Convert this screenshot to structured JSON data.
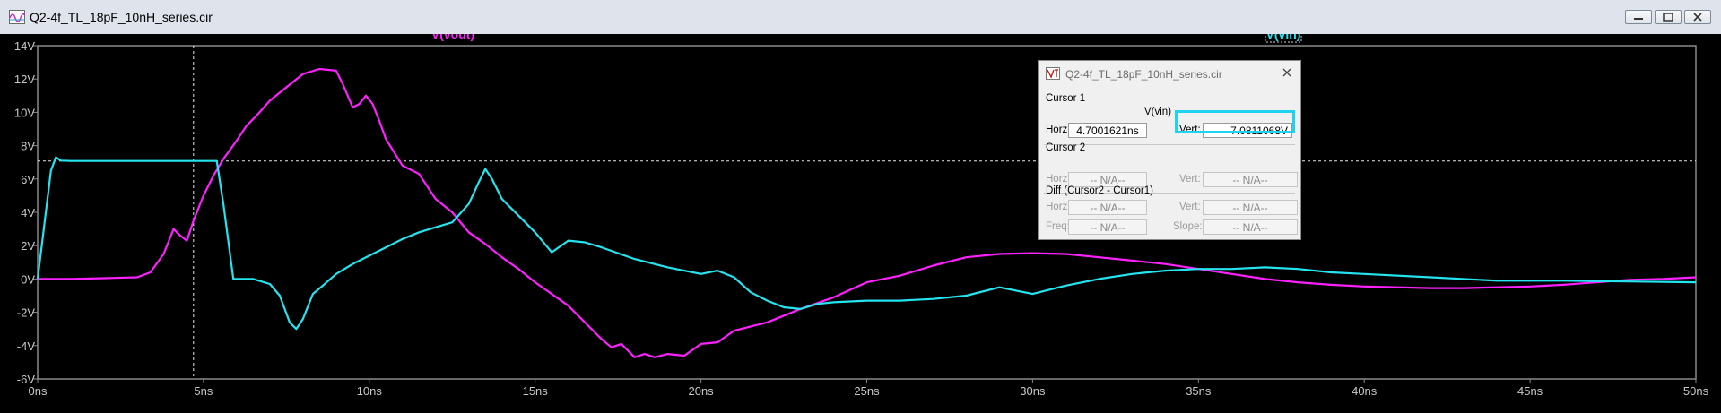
{
  "window": {
    "title": "Q2-4f_TL_18pF_10nH_series.cir"
  },
  "plot": {
    "traces": [
      {
        "name": "V(vout)",
        "color": "#ff20ff"
      },
      {
        "name": "V(vin)",
        "color": "#24e4f0"
      }
    ],
    "y_ticks": [
      "14V",
      "12V",
      "10V",
      "8V",
      "6V",
      "4V",
      "2V",
      "0V",
      "-2V",
      "-4V",
      "-6V"
    ],
    "x_ticks": [
      "0ns",
      "5ns",
      "10ns",
      "15ns",
      "20ns",
      "25ns",
      "30ns",
      "35ns",
      "40ns",
      "45ns",
      "50ns"
    ]
  },
  "chart_data": {
    "type": "line",
    "xlabel": "",
    "ylabel": "",
    "xlim": [
      0,
      50
    ],
    "ylim": [
      -6,
      14
    ],
    "x_unit": "ns",
    "y_unit": "V",
    "grid": false,
    "cursor": {
      "x": 4.7001621,
      "y": 7.0811068
    },
    "series": [
      {
        "name": "V(vout)",
        "color": "#ff20ff",
        "x": [
          0,
          1,
          2,
          3,
          3.4,
          3.8,
          4.1,
          4.3,
          4.5,
          4.7,
          5,
          5.3,
          5.6,
          6,
          6.3,
          6.6,
          7,
          7.5,
          8,
          8.5,
          9,
          9.2,
          9.5,
          9.7,
          9.9,
          10.1,
          10.3,
          10.5,
          11,
          11.5,
          12,
          12.5,
          13,
          13.5,
          14,
          14.5,
          15,
          16,
          17,
          17.3,
          17.6,
          18,
          18.3,
          18.6,
          19,
          19.5,
          20,
          20.5,
          21,
          22,
          23,
          24,
          25,
          26,
          27,
          28,
          29,
          30,
          31,
          32,
          33,
          34,
          35,
          36,
          37,
          38,
          39,
          40,
          41,
          42,
          43,
          44,
          45,
          46,
          47,
          48,
          49,
          50
        ],
        "values": [
          0,
          0,
          0.05,
          0.1,
          0.4,
          1.5,
          3.0,
          2.6,
          2.3,
          3.5,
          5.0,
          6.2,
          7.2,
          8.3,
          9.2,
          9.8,
          10.7,
          11.5,
          12.3,
          12.6,
          12.5,
          11.7,
          10.3,
          10.5,
          11.0,
          10.5,
          9.5,
          8.4,
          6.8,
          6.3,
          4.8,
          4.0,
          2.8,
          2.1,
          1.3,
          0.6,
          -0.2,
          -1.6,
          -3.6,
          -4.1,
          -3.9,
          -4.7,
          -4.5,
          -4.7,
          -4.5,
          -4.6,
          -3.9,
          -3.8,
          -3.1,
          -2.6,
          -1.8,
          -1.1,
          -0.2,
          0.2,
          0.8,
          1.3,
          1.5,
          1.55,
          1.5,
          1.3,
          1.1,
          0.9,
          0.6,
          0.3,
          0,
          -0.2,
          -0.35,
          -0.45,
          -0.5,
          -0.55,
          -0.55,
          -0.5,
          -0.45,
          -0.35,
          -0.2,
          -0.05,
          0,
          0.1
        ]
      },
      {
        "name": "V(vin)",
        "color": "#24e4f0",
        "x": [
          0,
          0.4,
          0.55,
          0.7,
          1,
          2,
          3,
          4,
          4.7,
          5.4,
          5.6,
          5.8,
          5.9,
          6,
          6.5,
          7,
          7.3,
          7.6,
          7.8,
          8,
          8.3,
          8.6,
          9,
          9.5,
          10,
          10.5,
          11,
          11.5,
          12,
          12.5,
          13,
          13.3,
          13.5,
          13.7,
          14,
          14.5,
          15,
          15.5,
          16,
          16.5,
          17,
          18,
          19,
          20,
          20.5,
          21,
          21.5,
          22,
          22.5,
          23,
          23.5,
          24,
          25,
          26,
          27,
          28,
          29,
          30,
          31,
          32,
          33,
          34,
          35,
          36,
          37,
          38,
          39,
          40,
          42,
          44,
          46,
          48,
          50
        ],
        "values": [
          0,
          6.5,
          7.3,
          7.1,
          7.08,
          7.08,
          7.08,
          7.08,
          7.08,
          7.08,
          4.5,
          1.5,
          0,
          0,
          0,
          -0.3,
          -1.0,
          -2.6,
          -3.0,
          -2.4,
          -0.9,
          -0.4,
          0.3,
          0.9,
          1.4,
          1.9,
          2.4,
          2.8,
          3.1,
          3.4,
          4.5,
          5.8,
          6.6,
          6.0,
          4.8,
          3.8,
          2.8,
          1.6,
          2.3,
          2.2,
          1.9,
          1.2,
          0.7,
          0.3,
          0.5,
          0.1,
          -0.8,
          -1.3,
          -1.7,
          -1.8,
          -1.5,
          -1.4,
          -1.3,
          -1.3,
          -1.2,
          -1.0,
          -0.5,
          -0.9,
          -0.4,
          0,
          0.3,
          0.5,
          0.6,
          0.6,
          0.7,
          0.6,
          0.4,
          0.3,
          0.1,
          -0.1,
          -0.1,
          -0.15,
          -0.2
        ]
      }
    ]
  },
  "cursor_dialog": {
    "title": "Q2-4f_TL_18pF_10nH_series.cir",
    "cursor1_label": "Cursor 1",
    "trace_label": "V(vin)",
    "horz_label": "Horz:",
    "horz_value": "4.7001621ns",
    "vert_label": "Vert:",
    "vert_value": "7.0811068V",
    "cursor2_label": "Cursor 2",
    "c2_horz_label": "Horz:",
    "c2_horz_value": "-- N/A--",
    "c2_vert_label": "Vert:",
    "c2_vert_value": "-- N/A--",
    "diff_label": "Diff (Cursor2 - Cursor1)",
    "diff_horz_label": "Horz:",
    "diff_horz_value": "-- N/A--",
    "diff_vert_label": "Vert:",
    "diff_vert_value": "-- N/A--",
    "freq_label": "Freq:",
    "freq_value": "-- N/A--",
    "slope_label": "Slope:",
    "slope_value": "-- N/A--"
  }
}
